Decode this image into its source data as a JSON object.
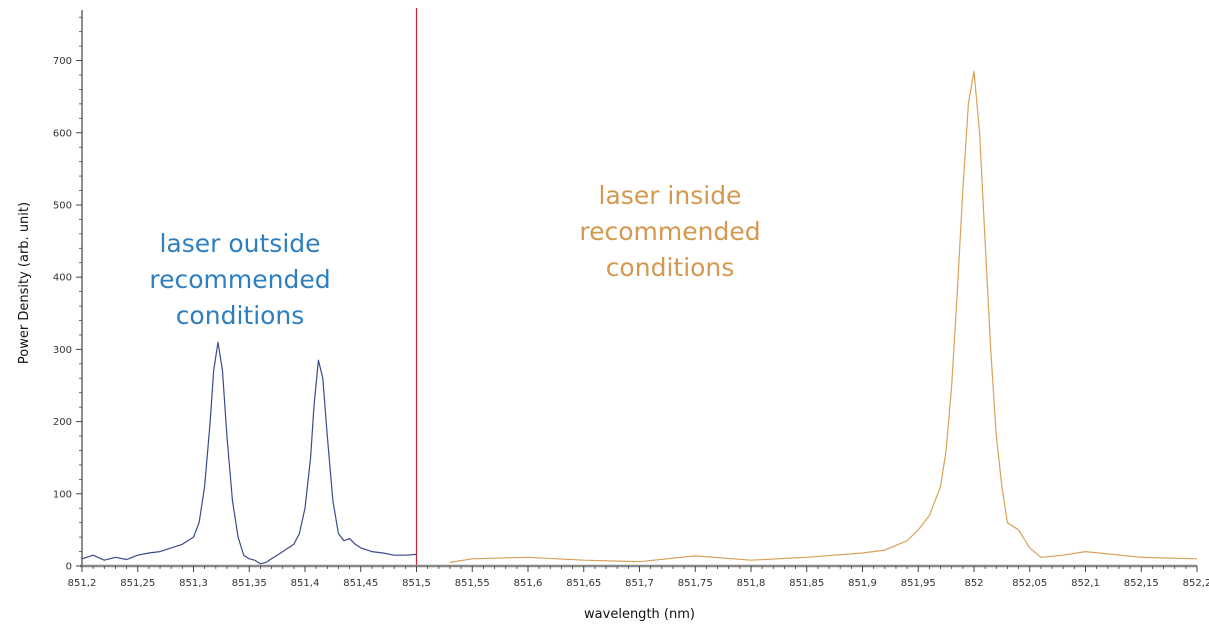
{
  "chart_data": {
    "type": "line",
    "xlabel": "wavelength (nm)",
    "ylabel": "Power Density (arb. unit)",
    "xlim": [
      851.2,
      852.2
    ],
    "ylim": [
      0,
      770
    ],
    "x_ticks": [
      "851,2",
      "851,25",
      "851,3",
      "851,35",
      "851,4",
      "851,45",
      "851,5",
      "851,55",
      "851,6",
      "851,65",
      "851,7",
      "851,75",
      "851,8",
      "851,85",
      "851,9",
      "851,95",
      "852",
      "852,05",
      "852,1",
      "852,15",
      "852,2"
    ],
    "y_ticks": [
      "0",
      "100",
      "200",
      "300",
      "400",
      "500",
      "600",
      "700"
    ],
    "divider_x": 851.5,
    "colors": {
      "outside": "#3a4a8c",
      "inside": "#d9a15a",
      "divider": "#cc2233",
      "axis": "#444444",
      "annot_outside": "#2f7fbf",
      "annot_inside": "#d4984f"
    },
    "annotations": [
      {
        "id": "outside",
        "text": "laser outside\nrecommended\nconditions"
      },
      {
        "id": "inside",
        "text": "laser inside\nrecommended\nconditions"
      }
    ],
    "series": [
      {
        "id": "outside",
        "x": [
          851.2,
          851.21,
          851.22,
          851.23,
          851.24,
          851.25,
          851.26,
          851.27,
          851.28,
          851.29,
          851.3,
          851.305,
          851.31,
          851.315,
          851.318,
          851.322,
          851.326,
          851.33,
          851.335,
          851.34,
          851.345,
          851.35,
          851.355,
          851.36,
          851.365,
          851.37,
          851.375,
          851.38,
          851.385,
          851.39,
          851.395,
          851.4,
          851.405,
          851.408,
          851.412,
          851.416,
          851.42,
          851.425,
          851.43,
          851.435,
          851.44,
          851.445,
          851.45,
          851.46,
          851.47,
          851.48,
          851.49,
          851.5
        ],
        "y": [
          10,
          15,
          8,
          12,
          9,
          15,
          18,
          20,
          25,
          30,
          40,
          60,
          110,
          200,
          270,
          310,
          270,
          180,
          90,
          40,
          15,
          10,
          8,
          3,
          5,
          10,
          15,
          20,
          25,
          30,
          45,
          80,
          150,
          220,
          285,
          260,
          180,
          90,
          45,
          35,
          38,
          30,
          25,
          20,
          18,
          15,
          15,
          16
        ]
      },
      {
        "id": "inside",
        "x": [
          851.53,
          851.55,
          851.6,
          851.65,
          851.7,
          851.75,
          851.8,
          851.85,
          851.9,
          851.92,
          851.94,
          851.95,
          851.96,
          851.97,
          851.975,
          851.98,
          851.985,
          851.99,
          851.995,
          852.0,
          852.005,
          852.01,
          852.015,
          852.02,
          852.025,
          852.03,
          852.04,
          852.05,
          852.06,
          852.08,
          852.1,
          852.15,
          852.2
        ],
        "y": [
          5,
          10,
          12,
          8,
          6,
          14,
          8,
          12,
          18,
          22,
          35,
          50,
          70,
          110,
          160,
          250,
          380,
          520,
          640,
          685,
          600,
          450,
          300,
          180,
          110,
          60,
          50,
          25,
          12,
          15,
          20,
          12,
          10
        ]
      }
    ]
  }
}
